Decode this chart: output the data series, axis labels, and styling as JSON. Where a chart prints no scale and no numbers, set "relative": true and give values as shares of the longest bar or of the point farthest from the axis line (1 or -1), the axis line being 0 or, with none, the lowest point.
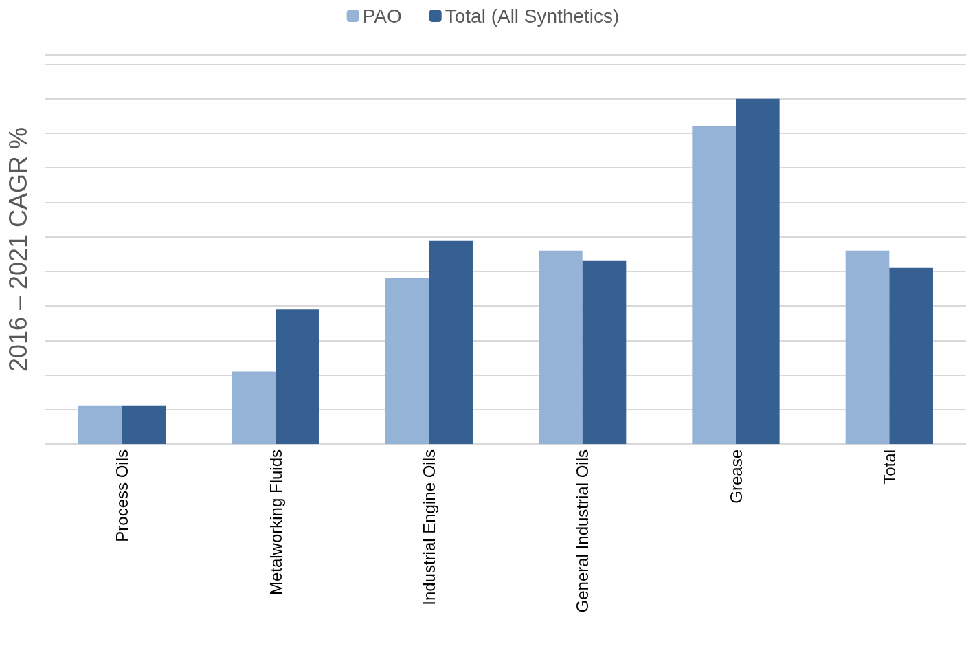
{
  "chart_data": {
    "type": "bar",
    "ylabel": "2016 – 2021 CAGR %",
    "categories": [
      "Process Oils",
      "Metalworking Fluids",
      "Industrial Engine Oils",
      "General Industrial Oils",
      "Grease",
      "Total"
    ],
    "series": [
      {
        "name": "PAO",
        "color": "#95b3d7",
        "values": [
          0.11,
          0.21,
          0.48,
          0.56,
          0.92,
          0.56
        ]
      },
      {
        "name": "Total (All Synthetics)",
        "color": "#366092",
        "values": [
          0.11,
          0.39,
          0.59,
          0.53,
          1,
          0.51
        ]
      }
    ],
    "relative": true,
    "grid": "y",
    "legend": "top"
  }
}
